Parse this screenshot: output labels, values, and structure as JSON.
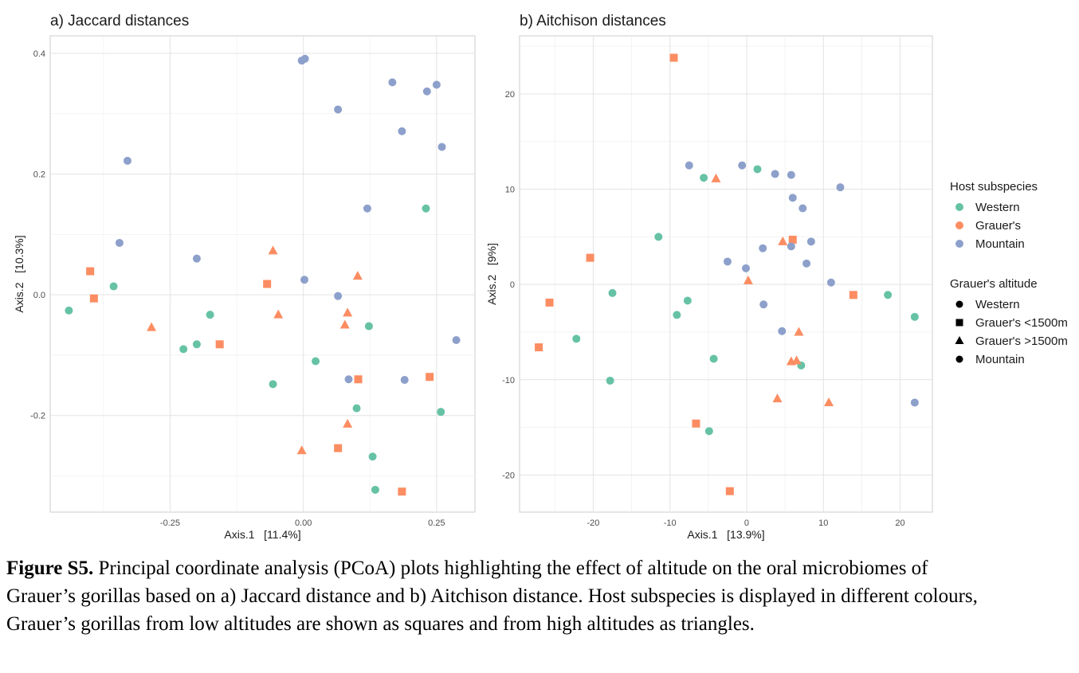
{
  "colors": {
    "Western": "#66C2A5",
    "Grauer's": "#FC8D62",
    "Mountain": "#8DA0CB"
  },
  "legend": {
    "host_title": "Host subspecies",
    "host_items": [
      "Western",
      "Grauer's",
      "Mountain"
    ],
    "alt_title": "Grauer's altitude",
    "alt_items": [
      {
        "label": "Western",
        "shape": "circle"
      },
      {
        "label": "Grauer's <1500m",
        "shape": "square"
      },
      {
        "label": "Grauer's >1500m",
        "shape": "triangle"
      },
      {
        "label": "Mountain",
        "shape": "circle"
      }
    ]
  },
  "caption": {
    "label": "Figure S5.",
    "text": " Principal coordinate analysis (PCoA) plots highlighting the effect of altitude on the oral microbiomes of Grauer’s gorillas based on a) Jaccard distance and b) Aitchison distance. Host subspecies is displayed in different colours, Grauer’s gorillas from low altitudes are shown as squares and from high altitudes as triangles."
  },
  "chart_data": [
    {
      "type": "scatter",
      "title": "a) Jaccard distances",
      "xlabel": "Axis.1   [11.4%]",
      "ylabel": "Axis.2   [10.3%]",
      "xlim": [
        -0.475,
        0.322
      ],
      "ylim": [
        -0.36,
        0.429
      ],
      "xticks": [
        -0.25,
        0.0,
        0.25
      ],
      "xtick_labels": [
        "-0.25",
        "0.00",
        "0.25"
      ],
      "yticks": [
        -0.2,
        0.0,
        0.2,
        0.4
      ],
      "ytick_labels": [
        "-0.2",
        "0.0",
        "0.2",
        "0.4"
      ],
      "grid": true,
      "points": [
        {
          "x": -0.44,
          "y": -0.026,
          "host": "Western",
          "altitude": "Western"
        },
        {
          "x": -0.356,
          "y": 0.014,
          "host": "Western",
          "altitude": "Western"
        },
        {
          "x": -0.225,
          "y": -0.09,
          "host": "Western",
          "altitude": "Western"
        },
        {
          "x": -0.2,
          "y": -0.082,
          "host": "Western",
          "altitude": "Western"
        },
        {
          "x": -0.175,
          "y": -0.033,
          "host": "Western",
          "altitude": "Western"
        },
        {
          "x": -0.057,
          "y": -0.148,
          "host": "Western",
          "altitude": "Western"
        },
        {
          "x": 0.023,
          "y": -0.11,
          "host": "Western",
          "altitude": "Western"
        },
        {
          "x": 0.1,
          "y": -0.188,
          "host": "Western",
          "altitude": "Western"
        },
        {
          "x": 0.123,
          "y": -0.052,
          "host": "Western",
          "altitude": "Western"
        },
        {
          "x": 0.13,
          "y": -0.268,
          "host": "Western",
          "altitude": "Western"
        },
        {
          "x": 0.135,
          "y": -0.323,
          "host": "Western",
          "altitude": "Western"
        },
        {
          "x": 0.23,
          "y": 0.143,
          "host": "Western",
          "altitude": "Western"
        },
        {
          "x": 0.258,
          "y": -0.194,
          "host": "Western",
          "altitude": "Western"
        },
        {
          "x": -0.4,
          "y": 0.039,
          "host": "Grauer's",
          "altitude": "Grauer's <1500m"
        },
        {
          "x": -0.393,
          "y": -0.006,
          "host": "Grauer's",
          "altitude": "Grauer's <1500m"
        },
        {
          "x": -0.157,
          "y": -0.082,
          "host": "Grauer's",
          "altitude": "Grauer's <1500m"
        },
        {
          "x": -0.068,
          "y": 0.018,
          "host": "Grauer's",
          "altitude": "Grauer's <1500m"
        },
        {
          "x": 0.065,
          "y": -0.254,
          "host": "Grauer's",
          "altitude": "Grauer's <1500m"
        },
        {
          "x": 0.103,
          "y": -0.14,
          "host": "Grauer's",
          "altitude": "Grauer's <1500m"
        },
        {
          "x": 0.185,
          "y": -0.326,
          "host": "Grauer's",
          "altitude": "Grauer's <1500m"
        },
        {
          "x": 0.237,
          "y": -0.136,
          "host": "Grauer's",
          "altitude": "Grauer's <1500m"
        },
        {
          "x": -0.285,
          "y": -0.054,
          "host": "Grauer's",
          "altitude": "Grauer's >1500m"
        },
        {
          "x": -0.057,
          "y": 0.073,
          "host": "Grauer's",
          "altitude": "Grauer's >1500m"
        },
        {
          "x": -0.047,
          "y": -0.033,
          "host": "Grauer's",
          "altitude": "Grauer's >1500m"
        },
        {
          "x": -0.003,
          "y": -0.258,
          "host": "Grauer's",
          "altitude": "Grauer's >1500m"
        },
        {
          "x": 0.078,
          "y": -0.05,
          "host": "Grauer's",
          "altitude": "Grauer's >1500m"
        },
        {
          "x": 0.083,
          "y": -0.03,
          "host": "Grauer's",
          "altitude": "Grauer's >1500m"
        },
        {
          "x": 0.083,
          "y": -0.214,
          "host": "Grauer's",
          "altitude": "Grauer's >1500m"
        },
        {
          "x": 0.102,
          "y": 0.031,
          "host": "Grauer's",
          "altitude": "Grauer's >1500m"
        },
        {
          "x": -0.33,
          "y": 0.222,
          "host": "Mountain",
          "altitude": "Mountain"
        },
        {
          "x": -0.345,
          "y": 0.086,
          "host": "Mountain",
          "altitude": "Mountain"
        },
        {
          "x": -0.2,
          "y": 0.06,
          "host": "Mountain",
          "altitude": "Mountain"
        },
        {
          "x": -0.003,
          "y": 0.388,
          "host": "Mountain",
          "altitude": "Mountain"
        },
        {
          "x": 0.003,
          "y": 0.391,
          "host": "Mountain",
          "altitude": "Mountain"
        },
        {
          "x": 0.065,
          "y": 0.307,
          "host": "Mountain",
          "altitude": "Mountain"
        },
        {
          "x": 0.002,
          "y": 0.025,
          "host": "Mountain",
          "altitude": "Mountain"
        },
        {
          "x": 0.065,
          "y": -0.002,
          "host": "Mountain",
          "altitude": "Mountain"
        },
        {
          "x": 0.085,
          "y": -0.14,
          "host": "Mountain",
          "altitude": "Mountain"
        },
        {
          "x": 0.12,
          "y": 0.143,
          "host": "Mountain",
          "altitude": "Mountain"
        },
        {
          "x": 0.167,
          "y": 0.352,
          "host": "Mountain",
          "altitude": "Mountain"
        },
        {
          "x": 0.185,
          "y": 0.271,
          "host": "Mountain",
          "altitude": "Mountain"
        },
        {
          "x": 0.19,
          "y": -0.141,
          "host": "Mountain",
          "altitude": "Mountain"
        },
        {
          "x": 0.232,
          "y": 0.337,
          "host": "Mountain",
          "altitude": "Mountain"
        },
        {
          "x": 0.25,
          "y": 0.348,
          "host": "Mountain",
          "altitude": "Mountain"
        },
        {
          "x": 0.26,
          "y": 0.245,
          "host": "Mountain",
          "altitude": "Mountain"
        },
        {
          "x": 0.287,
          "y": -0.075,
          "host": "Mountain",
          "altitude": "Mountain"
        }
      ]
    },
    {
      "type": "scatter",
      "title": "b) Aitchison distances",
      "xlabel": "Axis.1   [13.9%]",
      "ylabel": "Axis.2   [9%]",
      "xlim": [
        -29.6,
        24.2
      ],
      "ylim": [
        -23.9,
        26.1
      ],
      "xticks": [
        -20,
        -10,
        0,
        10,
        20
      ],
      "xtick_labels": [
        "-20",
        "-10",
        "0",
        "10",
        "20"
      ],
      "yticks": [
        -20,
        -10,
        0,
        10,
        20
      ],
      "ytick_labels": [
        "-20",
        "-10",
        "0",
        "10",
        "20"
      ],
      "grid": true,
      "points": [
        {
          "x": -22.2,
          "y": -5.7,
          "host": "Western",
          "altitude": "Western"
        },
        {
          "x": -17.8,
          "y": -10.1,
          "host": "Western",
          "altitude": "Western"
        },
        {
          "x": -17.5,
          "y": -0.9,
          "host": "Western",
          "altitude": "Western"
        },
        {
          "x": -11.5,
          "y": 5.0,
          "host": "Western",
          "altitude": "Western"
        },
        {
          "x": -9.1,
          "y": -3.2,
          "host": "Western",
          "altitude": "Western"
        },
        {
          "x": -7.7,
          "y": -1.7,
          "host": "Western",
          "altitude": "Western"
        },
        {
          "x": -5.6,
          "y": 11.2,
          "host": "Western",
          "altitude": "Western"
        },
        {
          "x": -4.9,
          "y": -15.4,
          "host": "Western",
          "altitude": "Western"
        },
        {
          "x": -4.3,
          "y": -7.8,
          "host": "Western",
          "altitude": "Western"
        },
        {
          "x": 1.4,
          "y": 12.1,
          "host": "Western",
          "altitude": "Western"
        },
        {
          "x": 7.1,
          "y": -8.5,
          "host": "Western",
          "altitude": "Western"
        },
        {
          "x": 18.4,
          "y": -1.1,
          "host": "Western",
          "altitude": "Western"
        },
        {
          "x": 21.9,
          "y": -3.4,
          "host": "Western",
          "altitude": "Western"
        },
        {
          "x": -9.5,
          "y": 23.8,
          "host": "Grauer's",
          "altitude": "Grauer's <1500m"
        },
        {
          "x": -20.4,
          "y": 2.8,
          "host": "Grauer's",
          "altitude": "Grauer's <1500m"
        },
        {
          "x": -25.7,
          "y": -1.9,
          "host": "Grauer's",
          "altitude": "Grauer's <1500m"
        },
        {
          "x": -27.1,
          "y": -6.6,
          "host": "Grauer's",
          "altitude": "Grauer's <1500m"
        },
        {
          "x": -6.6,
          "y": -14.6,
          "host": "Grauer's",
          "altitude": "Grauer's <1500m"
        },
        {
          "x": -2.2,
          "y": -21.7,
          "host": "Grauer's",
          "altitude": "Grauer's <1500m"
        },
        {
          "x": 6.0,
          "y": 4.7,
          "host": "Grauer's",
          "altitude": "Grauer's <1500m"
        },
        {
          "x": 13.9,
          "y": -1.1,
          "host": "Grauer's",
          "altitude": "Grauer's <1500m"
        },
        {
          "x": -4.0,
          "y": 11.1,
          "host": "Grauer's",
          "altitude": "Grauer's >1500m"
        },
        {
          "x": 0.2,
          "y": 0.4,
          "host": "Grauer's",
          "altitude": "Grauer's >1500m"
        },
        {
          "x": 4.7,
          "y": 4.5,
          "host": "Grauer's",
          "altitude": "Grauer's >1500m"
        },
        {
          "x": 4.0,
          "y": -12.0,
          "host": "Grauer's",
          "altitude": "Grauer's >1500m"
        },
        {
          "x": 5.8,
          "y": -8.1,
          "host": "Grauer's",
          "altitude": "Grauer's >1500m"
        },
        {
          "x": 6.5,
          "y": -8.0,
          "host": "Grauer's",
          "altitude": "Grauer's >1500m"
        },
        {
          "x": 6.8,
          "y": -5.0,
          "host": "Grauer's",
          "altitude": "Grauer's >1500m"
        },
        {
          "x": 10.7,
          "y": -12.4,
          "host": "Grauer's",
          "altitude": "Grauer's >1500m"
        },
        {
          "x": -7.5,
          "y": 12.5,
          "host": "Mountain",
          "altitude": "Mountain"
        },
        {
          "x": -0.6,
          "y": 12.5,
          "host": "Mountain",
          "altitude": "Mountain"
        },
        {
          "x": 3.7,
          "y": 11.6,
          "host": "Mountain",
          "altitude": "Mountain"
        },
        {
          "x": 5.8,
          "y": 11.5,
          "host": "Mountain",
          "altitude": "Mountain"
        },
        {
          "x": 12.2,
          "y": 10.2,
          "host": "Mountain",
          "altitude": "Mountain"
        },
        {
          "x": 6.0,
          "y": 9.1,
          "host": "Mountain",
          "altitude": "Mountain"
        },
        {
          "x": 7.3,
          "y": 8.0,
          "host": "Mountain",
          "altitude": "Mountain"
        },
        {
          "x": 8.4,
          "y": 4.5,
          "host": "Mountain",
          "altitude": "Mountain"
        },
        {
          "x": 2.1,
          "y": 3.8,
          "host": "Mountain",
          "altitude": "Mountain"
        },
        {
          "x": 5.8,
          "y": 4.0,
          "host": "Mountain",
          "altitude": "Mountain"
        },
        {
          "x": -2.5,
          "y": 2.4,
          "host": "Mountain",
          "altitude": "Mountain"
        },
        {
          "x": -0.1,
          "y": 1.7,
          "host": "Mountain",
          "altitude": "Mountain"
        },
        {
          "x": 7.8,
          "y": 2.2,
          "host": "Mountain",
          "altitude": "Mountain"
        },
        {
          "x": 11.0,
          "y": 0.2,
          "host": "Mountain",
          "altitude": "Mountain"
        },
        {
          "x": 2.2,
          "y": -2.1,
          "host": "Mountain",
          "altitude": "Mountain"
        },
        {
          "x": 4.6,
          "y": -4.9,
          "host": "Mountain",
          "altitude": "Mountain"
        },
        {
          "x": 21.9,
          "y": -12.4,
          "host": "Mountain",
          "altitude": "Mountain"
        }
      ]
    }
  ]
}
